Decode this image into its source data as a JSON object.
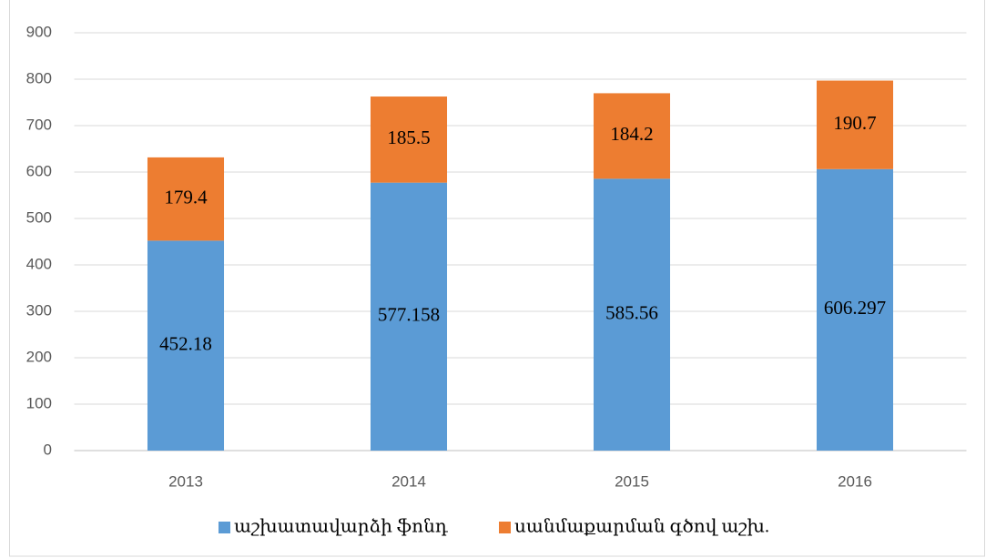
{
  "chart_data": {
    "type": "stacked_bar",
    "categories": [
      "2013",
      "2014",
      "2015",
      "2016"
    ],
    "series": [
      {
        "name": "աշխատավարձի ֆոնդ",
        "color": "#5b9bd5",
        "values": [
          452.18,
          577.158,
          585.56,
          606.297
        ]
      },
      {
        "name": "սանմաքարման գծով աշխ.",
        "color": "#ed7d31",
        "values": [
          179.4,
          185.5,
          184.2,
          190.7
        ]
      }
    ],
    "ylim": [
      0,
      900
    ],
    "yticks": [
      0,
      100,
      200,
      300,
      400,
      500,
      600,
      700,
      800,
      900
    ],
    "grid": true,
    "legend": "bottom"
  }
}
